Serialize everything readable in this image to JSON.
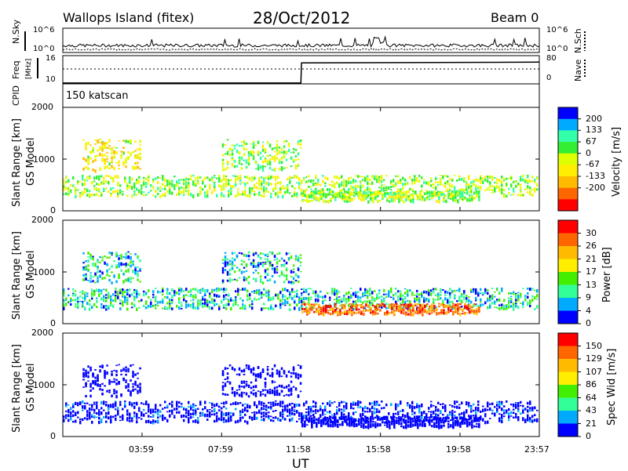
{
  "header": {
    "station": "Wallops Island  (fitex)",
    "date": "28/Oct/2012",
    "beam": "Beam 0"
  },
  "top_panels": {
    "nsky_label": "N.Sky",
    "nsky_ticks": [
      "10^6",
      "10^0"
    ],
    "nsch_label": "N.Sch",
    "nsch_ticks": [
      "10^6",
      "10^0"
    ],
    "freq_label": "Freq",
    "freq_unit": "[MHz]",
    "freq_ticks": [
      "16",
      "10"
    ],
    "nave_label": "Nave",
    "nave_ticks": [
      "80",
      "0"
    ],
    "cpid_label": "CPID",
    "cpid_text": "150 katscan"
  },
  "x_axis": {
    "label": "UT",
    "ticks": [
      "03:59",
      "07:59",
      "11:58",
      "15:58",
      "19:58",
      "23:57"
    ]
  },
  "panels": [
    {
      "ylabel": "Slant Range [km]",
      "model": "GS Model",
      "yticks": [
        "2000",
        "1000",
        "0"
      ],
      "colorbar_label": "Velocity [m/s]",
      "colorbar_ticks": [
        "200",
        "133",
        "67",
        "0",
        "-67",
        "-133",
        "-200"
      ],
      "colors": [
        "#0000ff",
        "#00aaff",
        "#33ffaa",
        "#33ee33",
        "#ddff00",
        "#ffee00",
        "#ffbb00",
        "#ff6600",
        "#ff0000"
      ]
    },
    {
      "ylabel": "Slant Range [km]",
      "model": "GS Model",
      "yticks": [
        "2000",
        "1000",
        "0"
      ],
      "colorbar_label": "Power [dB]",
      "colorbar_ticks": [
        "30",
        "26",
        "21",
        "17",
        "13",
        "9",
        "4",
        "0"
      ],
      "colors": [
        "#ff0000",
        "#ff6600",
        "#ffbb00",
        "#ffee00",
        "#44ee00",
        "#33ff99",
        "#00aaff",
        "#0000ff"
      ]
    },
    {
      "ylabel": "Slant Range [km]",
      "model": "GS Model",
      "yticks": [
        "2000",
        "1000",
        "0"
      ],
      "colorbar_label": "Spec Wid [m/s]",
      "colorbar_ticks": [
        "150",
        "129",
        "107",
        "86",
        "64",
        "43",
        "21",
        "0"
      ],
      "colors": [
        "#ff0000",
        "#ff6600",
        "#ffbb00",
        "#ffee00",
        "#44ee00",
        "#33ff99",
        "#00aaff",
        "#0000ff"
      ]
    }
  ],
  "chart_data": {
    "type": "heatmap",
    "x_label": "UT",
    "x_range": [
      "00:00",
      "23:57"
    ],
    "y_range": [
      0,
      2000
    ],
    "freq_ylim": [
      10,
      16
    ],
    "freq_step": [
      {
        "t": "00:00",
        "MHz": 10.2
      },
      {
        "t": "11:58",
        "MHz": 10.2
      },
      {
        "t": "12:00",
        "MHz": 15.0
      },
      {
        "t": "23:57",
        "MHz": 15.2
      }
    ],
    "bands": [
      {
        "t_start": "00:00",
        "t_end": "23:57",
        "range_km": [
          300,
          700
        ],
        "velocity": -50,
        "power": 15,
        "width": 20
      },
      {
        "t_start": "01:00",
        "t_end": "04:00",
        "range_km": [
          800,
          1400
        ],
        "velocity": -100,
        "power": 10,
        "width": 20
      },
      {
        "t_start": "08:00",
        "t_end": "12:00",
        "range_km": [
          800,
          1400
        ],
        "velocity": 20,
        "power": 12,
        "width": 20
      },
      {
        "t_start": "12:00",
        "t_end": "21:00",
        "range_km": [
          200,
          400
        ],
        "velocity": 10,
        "power": 28,
        "width": 15
      }
    ]
  }
}
